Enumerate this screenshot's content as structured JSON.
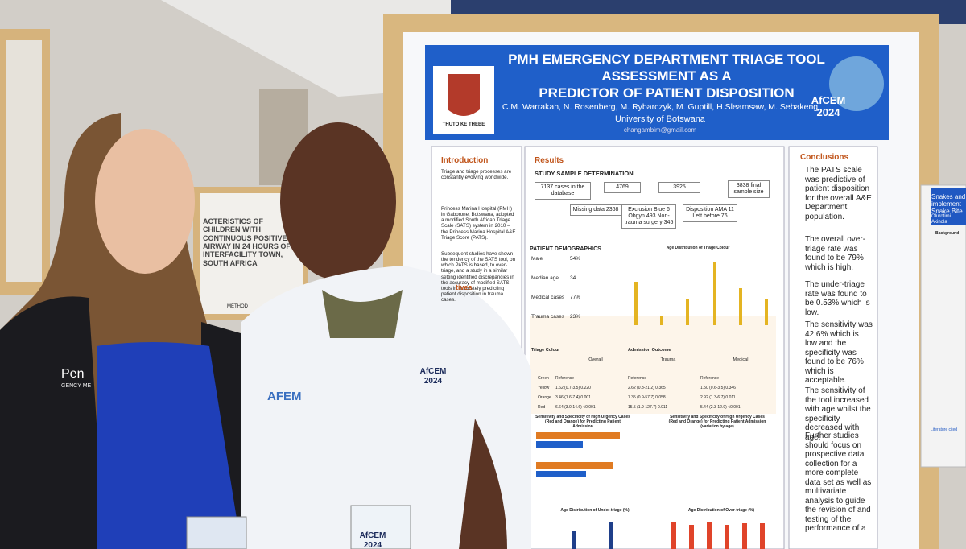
{
  "poster": {
    "title_lines": [
      "PMH EMERGENCY DEPARTMENT TRIAGE TOOL",
      "ASSESSMENT AS A",
      "PREDICTOR OF PATIENT DISPOSITION"
    ],
    "authors": "C.M. Warrakah, N. Rosenberg, M. Rybarczyk, M. Guptill, H.Sleamsaw, M. Sebakeng",
    "affiliation": "University of Botswana",
    "email": "changambim@gmail.com",
    "motto": "THUTO KE THEBE",
    "conference_logo": "AfCEM 2024",
    "introduction": {
      "heading": "Introduction",
      "paragraphs": [
        "Triage and triage processes are constantly evolving worldwide.",
        "Princess Marina Hospital (PMH) in Gaborone, Botswana, adopted a modified South African Triage Scale (SATS) system in 2010 – the Princess Marina Hospital A&E Triage Score (PATS).",
        "Subsequent studies have shown the tendency of the SATS tool, on which PATS is based, to over-triage, and a study in a similar setting identified discrepancies in the accuracy of modified SATS tools in accurately predicting patient disposition in trauma cases."
      ]
    },
    "objectives_heading": "tives",
    "results": {
      "heading": "Results",
      "subheading": "STUDY SAMPLE DETERMINATION",
      "flow": [
        "7137 cases in the database",
        "4769",
        "3925",
        "3838 final sample size",
        "Missing data 2368",
        "Exclusion Blue 6 Obgyn 493 Non-trauma surgery 345",
        "Disposition AMA 11 Left before 76"
      ]
    },
    "demographics": {
      "heading": "PATIENT DEMOGRAPHICS",
      "rows": [
        [
          "Male",
          "54%"
        ],
        [
          "Median age",
          "34"
        ],
        [
          "Medical cases",
          "77%"
        ],
        [
          "Trauma cases",
          "23%"
        ]
      ]
    },
    "chart_titles": [
      "Age Distribution of Triage Colour",
      "Sensitivity and Specificity of High Urgency Cases (Red and Orange) for Predicting Patient Admission",
      "Sensitivity and Specificity of High Urgency Cases (Red and Orange) for Predicting Patient Admission (variation by age)",
      "Age Distribution of Under-triage (%)",
      "Age Distribution of Over-triage (%)"
    ],
    "table": {
      "caption": [
        "Triage Colour",
        "Admission Outcome"
      ],
      "groups": [
        "Overall",
        "Trauma",
        "Medical"
      ],
      "rows": [
        [
          "Green",
          "Reference",
          "Reference",
          "Reference"
        ],
        [
          "Yellow",
          "1.62 (0.7-3.5) 0.220",
          "2.62 (0.3-21.2) 0.365",
          "1.50 (0.6-3.5) 0.346"
        ],
        [
          "Orange",
          "3.46 (1.6-7.4) 0.001",
          "7.35 (0.9-57.7) 0.058",
          "2.92 (1.3-6.7) 0.011"
        ],
        [
          "Red",
          "6.64 (3.0-14.6) <0.001",
          "15.5 (1.9-127.7) 0.011",
          "5.44 (2.3-12.9) <0.001"
        ]
      ]
    },
    "conclusions": {
      "heading": "Conclusions",
      "bullets": [
        "The PATS scale was predictive of patient disposition for the overall A&E Department population.",
        "The overall over-triage rate was found to be 79% which is high.",
        "The under-triage rate was found to be 0.53% which is low.",
        "The sensitivity was 42.6% which is low and the specificity was found to be 76% which is acceptable.",
        "The sensitivity of the tool increased with age whilst the specificity decreased with age.",
        "Further studies should focus on prospective data collection for a more complete data set as well as multivariate analysis to guide the revision of and testing of the performance of a"
      ]
    }
  },
  "background_poster": {
    "title": "ACTERISTICS OF CHILDREN WITH CONTINUOUS POSITIVE AIRWAY IN 24 HOURS OF INTERFACILITY TOWN, SOUTH AFRICA",
    "footer": "METHOD"
  },
  "side_poster": {
    "title": "Snakes and implement Snake Bite",
    "author": "Olurotimi Akinola",
    "heading": "Background",
    "footer": "Literature cited"
  },
  "clothing": {
    "jacket": "Pen",
    "jacket_sub": "GENCY ME",
    "shirt_logo": "AFEM",
    "shirt_badge": "AfCEM 2024",
    "lanyard_badge": "AfCEM 2024"
  }
}
